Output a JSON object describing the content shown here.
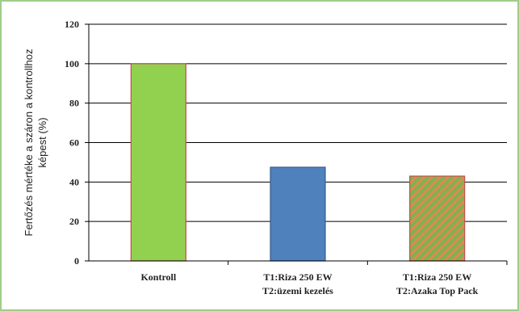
{
  "chart_data": {
    "type": "bar",
    "categories": [
      [
        "Kontroll"
      ],
      [
        "T1:Riza 250 EW",
        "T2:üzemi kezelés"
      ],
      [
        "T1:Riza 250 EW",
        "T2:Azaka Top Pack"
      ]
    ],
    "values": [
      100,
      47.5,
      43
    ],
    "bar_styles": [
      "solid-green",
      "solid-blue",
      "hatched-green-orange"
    ],
    "ylabel": [
      "Fertőzés mértéke a száron a kontrollhoz",
      "képest (%)"
    ],
    "xlabel": "",
    "ylim": [
      0,
      120
    ],
    "yticks": [
      "0",
      "20",
      "40",
      "60",
      "80",
      "100",
      "120"
    ],
    "grid": true
  },
  "colors": {
    "frame": "#9fcd8a",
    "green_fill": "#92d050",
    "green_stroke": "#c0504d",
    "blue_fill": "#4f81bd",
    "blue_stroke": "#385d8a",
    "hatch_green": "#7ab648",
    "hatch_orange": "#e8835a",
    "grid": "#000000"
  }
}
